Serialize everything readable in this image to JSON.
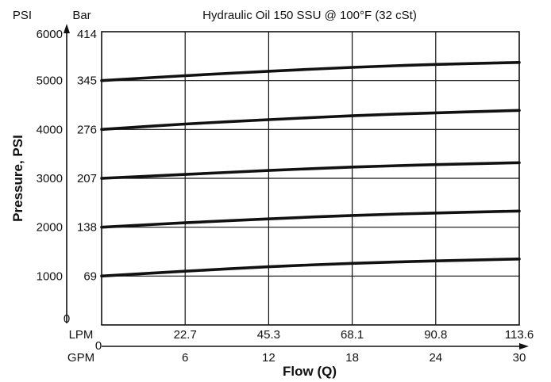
{
  "chart_data": {
    "type": "line",
    "title": "Hydraulic Oil 150 SSU @ 100°F (32 cSt)",
    "xlabel": "Flow (Q)",
    "ylabel": "Pressure, PSI",
    "x_unit_primary": "LPM",
    "x_unit_secondary": "GPM",
    "y_unit_primary": "PSI",
    "y_unit_secondary": "Bar",
    "x_gpm_ticks": [
      "0",
      "6",
      "12",
      "18",
      "24",
      "30"
    ],
    "x_lpm_ticks": [
      "",
      "22.7",
      "45.3",
      "68.1",
      "90.8",
      "113.6"
    ],
    "y_psi_ticks": [
      "0",
      "1000",
      "2000",
      "3000",
      "4000",
      "5000",
      "6000"
    ],
    "y_bar_ticks": [
      "",
      "69",
      "138",
      "207",
      "276",
      "345",
      "414"
    ],
    "xlim": [
      0,
      30
    ],
    "ylim": [
      0,
      6000
    ],
    "grid": true,
    "x": [
      0,
      6,
      12,
      18,
      24,
      30
    ],
    "series": [
      {
        "values": [
          1000,
          1100,
          1190,
          1260,
          1310,
          1350
        ]
      },
      {
        "values": [
          2000,
          2090,
          2170,
          2240,
          2290,
          2330
        ]
      },
      {
        "values": [
          3000,
          3080,
          3160,
          3230,
          3280,
          3320
        ]
      },
      {
        "values": [
          4000,
          4110,
          4200,
          4280,
          4340,
          4390
        ]
      },
      {
        "values": [
          5000,
          5100,
          5190,
          5270,
          5330,
          5370
        ]
      }
    ]
  }
}
